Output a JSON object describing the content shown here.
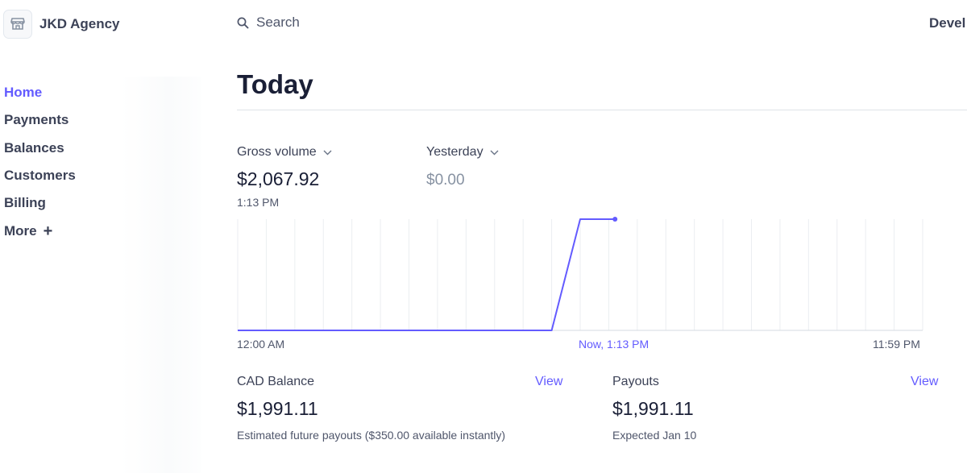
{
  "brand": {
    "name": "JKD Agency",
    "icon": "store-icon"
  },
  "search": {
    "label": "Search",
    "icon": "search-icon"
  },
  "topbar": {
    "right_text": "Devel"
  },
  "sidebar": {
    "items": [
      {
        "label": "Home",
        "active": true
      },
      {
        "label": "Payments"
      },
      {
        "label": "Balances"
      },
      {
        "label": "Customers"
      },
      {
        "label": "Billing"
      },
      {
        "label": "More"
      }
    ],
    "more_icon": "plus-icon"
  },
  "page": {
    "title": "Today"
  },
  "metrics": {
    "primary": {
      "label": "Gross volume",
      "value": "$2,067.92",
      "time": "1:13 PM"
    },
    "compare": {
      "label": "Yesterday",
      "value": "$0.00"
    }
  },
  "chart_data": {
    "type": "line",
    "x": [
      "12:00 AM",
      "Now, 1:13 PM",
      "11:59 PM"
    ],
    "series": [
      {
        "points": [
          [
            0,
            0
          ],
          [
            11,
            0
          ],
          [
            12,
            2067.92
          ],
          [
            13.22,
            2067.92
          ]
        ]
      }
    ],
    "xlim": [
      0,
      24
    ],
    "ylim": [
      0,
      2067.92
    ],
    "grid": true,
    "color": "#635bff"
  },
  "balance": {
    "title": "CAD Balance",
    "link": "View",
    "value": "$1,991.11",
    "note": "Estimated future payouts ($350.00 available instantly)"
  },
  "payouts": {
    "title": "Payouts",
    "link": "View",
    "value": "$1,991.11",
    "note": "Expected Jan 10"
  },
  "colors": {
    "accent": "#635bff",
    "text": "#1a1f36",
    "muted": "#8792a2"
  }
}
